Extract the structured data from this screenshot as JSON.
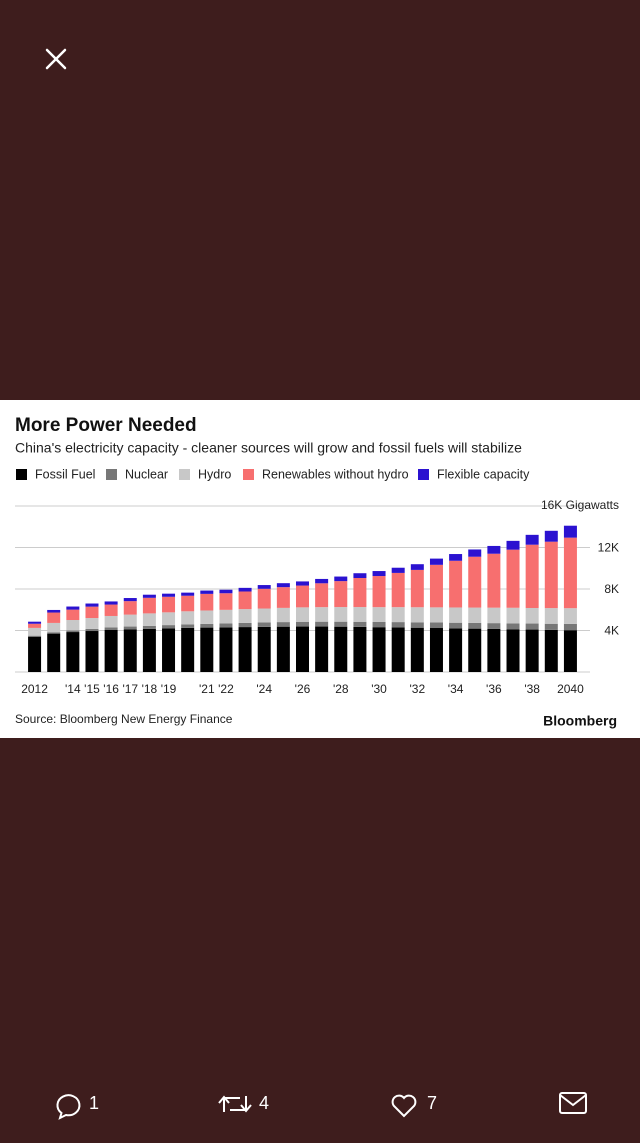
{
  "ui": {
    "reply_count": 1,
    "retweet_count": 4,
    "like_count": 7
  },
  "chart_data": {
    "type": "stacked_bar",
    "title": "More Power Needed",
    "subtitle": "China's electricity capacity - cleaner sources will grow and fossil fuels will stabilize",
    "source": "Source: Bloomberg New Energy Finance",
    "brand": "Bloomberg",
    "categories": [
      "2012",
      null,
      "'14",
      "'15",
      "'16",
      "'17",
      "'18",
      "'19",
      null,
      "'21",
      "'22",
      null,
      "'24",
      null,
      "'26",
      null,
      "'28",
      null,
      "'30",
      null,
      "'32",
      null,
      "'34",
      null,
      "'36",
      null,
      "'38",
      null,
      "2040"
    ],
    "series": [
      {
        "name": "Fossil Fuel",
        "color": "#000000",
        "values": [
          3400,
          3700,
          3850,
          3950,
          4050,
          4100,
          4150,
          4200,
          4250,
          4280,
          4300,
          4330,
          4350,
          4370,
          4380,
          4380,
          4370,
          4350,
          4320,
          4300,
          4270,
          4240,
          4210,
          4180,
          4150,
          4120,
          4090,
          4060,
          4030
        ]
      },
      {
        "name": "Nuclear",
        "color": "#777777",
        "values": [
          100,
          130,
          160,
          200,
          250,
          280,
          300,
          320,
          340,
          360,
          380,
          400,
          420,
          440,
          460,
          470,
          480,
          490,
          500,
          510,
          520,
          530,
          540,
          550,
          560,
          570,
          580,
          590,
          600
        ]
      },
      {
        "name": "Hydro",
        "color": "#c8c8c8",
        "values": [
          750,
          900,
          1000,
          1050,
          1100,
          1150,
          1200,
          1230,
          1260,
          1290,
          1310,
          1330,
          1350,
          1370,
          1390,
          1400,
          1410,
          1420,
          1430,
          1440,
          1450,
          1460,
          1470,
          1480,
          1490,
          1500,
          1500,
          1510,
          1520
        ]
      },
      {
        "name": "Renewables without hydro",
        "color": "#f76f6f",
        "values": [
          400,
          1000,
          1000,
          1100,
          1100,
          1300,
          1500,
          1500,
          1500,
          1600,
          1600,
          1700,
          1900,
          2000,
          2100,
          2300,
          2500,
          2800,
          3000,
          3300,
          3600,
          4100,
          4500,
          4900,
          5200,
          5600,
          6100,
          6400,
          6800
        ]
      },
      {
        "name": "Flexible capacity",
        "color": "#2b12d0",
        "values": [
          200,
          250,
          300,
          300,
          300,
          300,
          300,
          300,
          300,
          320,
          340,
          350,
          360,
          380,
          400,
          420,
          440,
          460,
          480,
          500,
          550,
          600,
          650,
          700,
          750,
          850,
          950,
          1050,
          1150
        ]
      }
    ],
    "ylim": [
      0,
      16000
    ],
    "yticks": [
      {
        "value": 4000,
        "label": "4K"
      },
      {
        "value": 8000,
        "label": "8K"
      },
      {
        "value": 12000,
        "label": "12K"
      },
      {
        "value": 16000,
        "label": "16K Gigawatts"
      }
    ],
    "grid": true
  }
}
